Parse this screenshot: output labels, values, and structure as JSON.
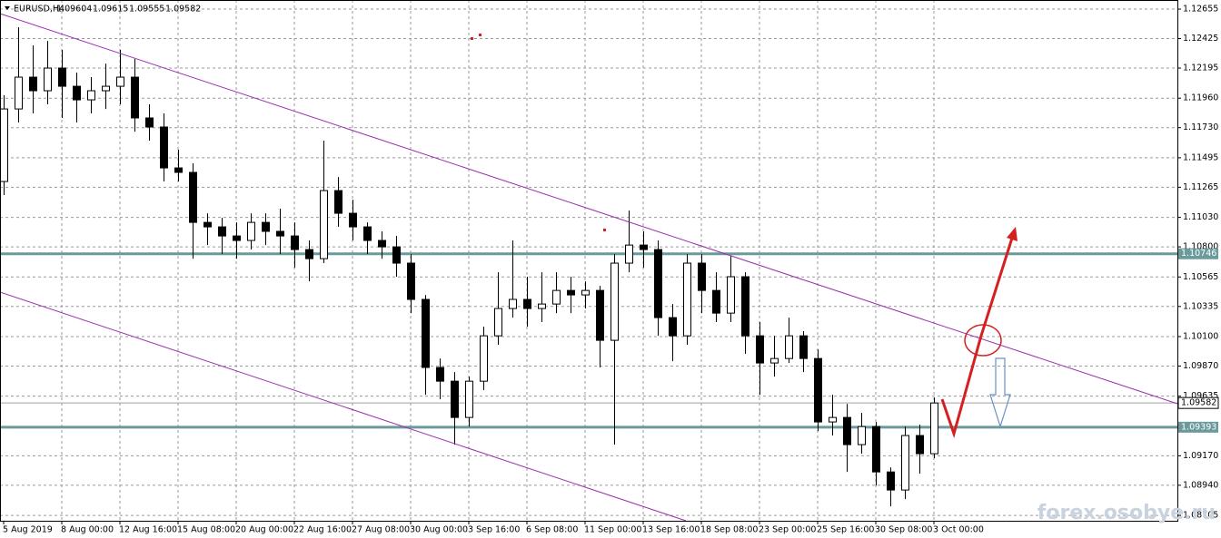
{
  "chart_data": {
    "type": "candlestick",
    "symbol": "EURUSD,H4",
    "header_values": [
      1.09604,
      1.09615,
      1.09555,
      1.09582
    ],
    "ylim": [
      1.08663,
      1.12726
    ],
    "yticks": [
      1.12655,
      1.12425,
      1.12195,
      {
        "value": 1.1196,
        "label": "1.11960"
      },
      {
        "value": 1.1173,
        "label": "1.11730"
      },
      1.11495,
      1.11265,
      {
        "value": 1.1103,
        "label": "1.11030"
      },
      {
        "value": 1.108,
        "label": "1.10800"
      },
      1.10565,
      1.10335,
      {
        "value": 1.101,
        "label": "1.10100"
      },
      {
        "value": 1.0987,
        "label": "1.09870"
      },
      1.09635,
      {
        "value": 1.0917,
        "label": "1.09170"
      },
      {
        "value": 1.0894,
        "label": "1.08940"
      },
      1.08705
    ],
    "xticks": [
      {
        "value": 0,
        "label": "5 Aug 2019"
      },
      {
        "value": 4,
        "label": "8 Aug 00:00"
      },
      {
        "value": 8,
        "label": "12 Aug 16:00"
      },
      {
        "value": 12,
        "label": "15 Aug 08:00"
      },
      {
        "value": 16,
        "label": "20 Aug 00:00"
      },
      {
        "value": 20,
        "label": "22 Aug 16:00"
      },
      {
        "value": 24,
        "label": "27 Aug 08:00"
      },
      {
        "value": 28,
        "label": "30 Aug 00:00"
      },
      {
        "value": 32,
        "label": "3 Sep 16:00"
      },
      {
        "value": 36,
        "label": "6 Sep 08:00"
      },
      {
        "value": 40,
        "label": "11 Sep 00:00"
      },
      {
        "value": 44,
        "label": "13 Sep 16:00"
      },
      {
        "value": 48,
        "label": "18 Sep 08:00"
      },
      {
        "value": 52,
        "label": "23 Sep 00:00"
      },
      {
        "value": 56,
        "label": "25 Sep 16:00"
      },
      {
        "value": 60,
        "label": "30 Sep 08:00"
      },
      {
        "value": 64,
        "label": "3 Oct 00:00"
      }
    ],
    "grid": true,
    "up_color": "#ffffff",
    "down_color": "#000000",
    "level_color": "#6a9a9c",
    "levels": [
      1.10746,
      1.09393
    ],
    "current_price": 1.09582,
    "watermark": "forex.osobye.ru",
    "candles": [
      [
        1.1131,
        1.11983,
        1.11204,
        1.11876
      ],
      [
        1.11876,
        1.12514,
        1.1177,
        1.12124
      ],
      [
        1.12124,
        1.12372,
        1.11841,
        1.12018
      ],
      [
        1.12018,
        1.12407,
        1.11912,
        1.12195
      ],
      [
        1.12195,
        1.12337,
        1.11806,
        1.12053
      ],
      [
        1.12053,
        1.1216,
        1.1177,
        1.11947
      ],
      [
        1.11947,
        1.12124,
        1.11841,
        1.12018
      ],
      [
        1.12018,
        1.1223,
        1.11876,
        1.12053
      ],
      [
        1.12053,
        1.12337,
        1.11912,
        1.12124
      ],
      [
        1.12124,
        1.12266,
        1.11699,
        1.11806
      ],
      [
        1.11806,
        1.11912,
        1.11629,
        1.11735
      ],
      [
        1.11735,
        1.11841,
        1.1131,
        1.11416
      ],
      [
        1.11416,
        1.11558,
        1.1131,
        1.11381
      ],
      [
        1.11381,
        1.11452,
        1.10708,
        1.10991
      ],
      [
        1.10991,
        1.11062,
        1.10814,
        1.10956
      ],
      [
        1.10956,
        1.11027,
        1.10744,
        1.10885
      ],
      [
        1.10885,
        1.10991,
        1.10708,
        1.1085
      ],
      [
        1.1085,
        1.11062,
        1.10779,
        1.10991
      ],
      [
        1.10991,
        1.11062,
        1.10814,
        1.10921
      ],
      [
        1.10921,
        1.11098,
        1.10744,
        1.10885
      ],
      [
        1.10885,
        1.10991,
        1.10637,
        1.10779
      ],
      [
        1.10779,
        1.1085,
        1.10531,
        1.10708
      ],
      [
        1.10708,
        1.11629,
        1.10673,
        1.11239
      ],
      [
        1.11239,
        1.11345,
        1.10956,
        1.11062
      ],
      [
        1.11062,
        1.11168,
        1.1085,
        1.10956
      ],
      [
        1.10956,
        1.10991,
        1.10744,
        1.1085
      ],
      [
        1.1085,
        1.10921,
        1.10708,
        1.108
      ],
      [
        1.108,
        1.10885,
        1.10567,
        1.10673
      ],
      [
        1.10673,
        1.10744,
        1.10283,
        1.1039
      ],
      [
        1.1039,
        1.10425,
        1.09646,
        1.09859
      ],
      [
        1.09859,
        1.09929,
        1.09611,
        1.09752
      ],
      [
        1.09752,
        1.09823,
        1.09257,
        1.09469
      ],
      [
        1.09469,
        1.09788,
        1.09398,
        1.09752
      ],
      [
        1.09752,
        1.10177,
        1.09682,
        1.10106
      ],
      [
        1.10106,
        1.10602,
        1.10036,
        1.10319
      ],
      [
        1.10319,
        1.1085,
        1.10248,
        1.1039
      ],
      [
        1.1039,
        1.10567,
        1.10177,
        1.10319
      ],
      [
        1.10319,
        1.10602,
        1.10213,
        1.10354
      ],
      [
        1.10354,
        1.10602,
        1.10283,
        1.1046
      ],
      [
        1.1046,
        1.10567,
        1.10283,
        1.10425
      ],
      [
        1.10425,
        1.10531,
        1.10319,
        1.1046
      ],
      [
        1.1046,
        1.10496,
        1.09859,
        1.10071
      ],
      [
        1.10071,
        1.10744,
        1.09257,
        1.10673
      ],
      [
        1.10673,
        1.11083,
        1.10602,
        1.10814
      ],
      [
        1.10814,
        1.10921,
        1.10637,
        1.10779
      ],
      [
        1.10779,
        1.1085,
        1.10106,
        1.10248
      ],
      [
        1.10248,
        1.10354,
        1.09908,
        1.10106
      ],
      [
        1.10106,
        1.10744,
        1.10036,
        1.10673
      ],
      [
        1.10673,
        1.10744,
        1.10283,
        1.1046
      ],
      [
        1.1046,
        1.10602,
        1.10213,
        1.10283
      ],
      [
        1.10283,
        1.10729,
        1.10213,
        1.10567
      ],
      [
        1.10567,
        1.10602,
        1.09965,
        1.10106
      ],
      [
        1.10106,
        1.10213,
        1.09646,
        1.09894
      ],
      [
        1.09894,
        1.10106,
        1.09788,
        1.09929
      ],
      [
        1.09929,
        1.10248,
        1.09894,
        1.10106
      ],
      [
        1.10106,
        1.10142,
        1.09823,
        1.09929
      ],
      [
        1.09929,
        1.1,
        1.09363,
        1.09434
      ],
      [
        1.09434,
        1.09646,
        1.09328,
        1.09469
      ],
      [
        1.09469,
        1.09575,
        1.09044,
        1.09257
      ],
      [
        1.09257,
        1.09505,
        1.09186,
        1.09398
      ],
      [
        1.09398,
        1.09434,
        1.08938,
        1.09044
      ],
      [
        1.09044,
        1.0908,
        1.08775,
        1.08903
      ],
      [
        1.08903,
        1.09398,
        1.08832,
        1.09328
      ],
      [
        1.09328,
        1.09413,
        1.0903,
        1.09186
      ],
      [
        1.09186,
        1.09625,
        1.09151,
        1.09582
      ]
    ]
  }
}
